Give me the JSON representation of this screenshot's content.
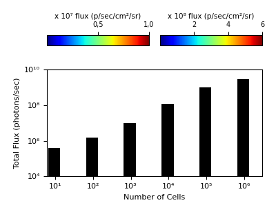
{
  "chart_data": {
    "type": "bar",
    "x": [
      10,
      100,
      1000,
      10000,
      100000,
      1000000
    ],
    "values": [
      400000.0,
      1500000.0,
      10000000.0,
      120000000.0,
      1000000000.0,
      3000000000.0
    ],
    "color": "#000000",
    "log": true,
    "xlabel": "Number of Cells",
    "ylabel": "Total Flux (photons/sec)",
    "xlim": [
      6,
      3000000
    ],
    "ylim": [
      10000,
      10000000000
    ],
    "xticks": [
      {
        "value": 10,
        "label": "10¹"
      },
      {
        "value": 100,
        "label": "10²"
      },
      {
        "value": 1000,
        "label": "10³"
      },
      {
        "value": 10000,
        "label": "10⁴"
      },
      {
        "value": 100000,
        "label": "10⁵"
      },
      {
        "value": 1000000,
        "label": "10⁶"
      }
    ],
    "yticks": [
      {
        "value": 10000,
        "label": "10⁴"
      },
      {
        "value": 1000000,
        "label": "10⁶"
      },
      {
        "value": 100000000,
        "label": "10⁸"
      },
      {
        "value": 10000000000,
        "label": "10¹⁰"
      }
    ],
    "colorbars": [
      {
        "label": "x 10⁷ flux (p/sec/cm²/sr)",
        "range": [
          0,
          1
        ],
        "ticks": [
          {
            "value": 0.5,
            "label": "0,5"
          },
          {
            "value": 1,
            "label": "1,0"
          }
        ]
      },
      {
        "label": "x 10⁸ flux (p/sec/cm²/sr)",
        "range": [
          0,
          6
        ],
        "ticks": [
          2,
          4,
          6
        ]
      }
    ]
  }
}
